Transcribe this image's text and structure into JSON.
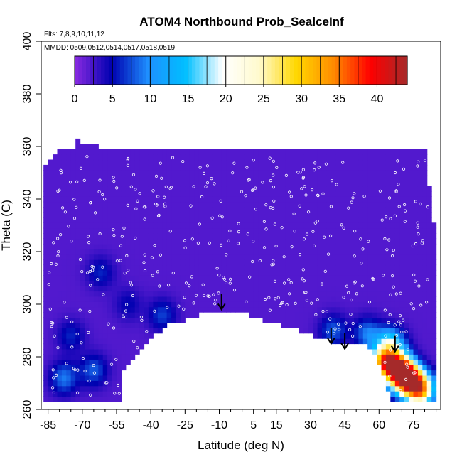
{
  "chart_data": {
    "type": "heatmap",
    "title": "ATOM4 Northbound Prob_SealceInf",
    "subtitle_flights": "Flts: 7,8,9,10,11,12",
    "subtitle_dates": "MMDD: 0509,0512,0514,0517,0518,0519",
    "xlabel": "Latitude (deg N)",
    "ylabel": "Theta (C)",
    "xlim": [
      -88,
      87
    ],
    "ylim": [
      260,
      400
    ],
    "xticks": [
      "-85",
      "-70",
      "-55",
      "-40",
      "-25",
      "-10",
      "5",
      "15",
      "30",
      "45",
      "60",
      "75"
    ],
    "xtick_values": [
      -85,
      -70,
      -55,
      -40,
      -25,
      -10,
      5,
      15,
      30,
      45,
      60,
      75
    ],
    "yticks": [
      "260",
      "280",
      "300",
      "320",
      "340",
      "360",
      "380",
      "400"
    ],
    "ytick_values": [
      260,
      280,
      300,
      320,
      340,
      360,
      380,
      400
    ],
    "colorbar": {
      "ticks": [
        "0",
        "5",
        "10",
        "15",
        "20",
        "25",
        "30",
        "35",
        "40"
      ],
      "tick_values": [
        0,
        5,
        10,
        15,
        20,
        25,
        30,
        35,
        40
      ],
      "range": [
        0,
        44
      ],
      "colors": [
        "#8a2be2",
        "#0000b0",
        "#1e90ff",
        "#00bfff",
        "#ffffff",
        "#fffacd",
        "#ffd700",
        "#ff8c00",
        "#ff0000",
        "#a52a2a"
      ]
    },
    "field": {
      "background_value": 2,
      "domain_top": [
        [
          -85,
          352
        ],
        [
          -80,
          358
        ],
        [
          -74,
          358
        ],
        [
          -72,
          361
        ],
        [
          -60,
          358
        ],
        [
          80,
          358
        ],
        [
          84,
          330
        ],
        [
          85,
          264
        ]
      ],
      "domain_bottom": [
        [
          -85,
          264
        ],
        [
          -53,
          264
        ],
        [
          -53,
          275
        ],
        [
          -40,
          288
        ],
        [
          -30,
          295
        ],
        [
          -25,
          295
        ],
        [
          -20,
          297
        ],
        [
          -10,
          298.5
        ],
        [
          0,
          298
        ],
        [
          10,
          295
        ],
        [
          25,
          291
        ],
        [
          45,
          285
        ],
        [
          55,
          286
        ],
        [
          62,
          275
        ],
        [
          65,
          265
        ],
        [
          84,
          264
        ]
      ],
      "features": [
        {
          "lat": -75,
          "theta": 288,
          "value": 6
        },
        {
          "lat": -65,
          "theta": 275,
          "value": 8
        },
        {
          "lat": -78,
          "theta": 272,
          "value": 9
        },
        {
          "lat": -62,
          "theta": 312,
          "value": 6
        },
        {
          "lat": -50,
          "theta": 300,
          "value": 5
        },
        {
          "lat": -35,
          "theta": 296,
          "value": 7
        },
        {
          "lat": 40,
          "theta": 290,
          "value": 8
        },
        {
          "lat": 55,
          "theta": 289,
          "value": 9
        },
        {
          "lat": 65,
          "theta": 285,
          "value": 16
        },
        {
          "lat": 68,
          "theta": 276,
          "value": 32
        },
        {
          "lat": 72,
          "theta": 272,
          "value": 40
        },
        {
          "lat": 62,
          "theta": 278,
          "value": 28
        },
        {
          "lat": 78,
          "theta": 268,
          "value": 34
        }
      ]
    },
    "arrows": [
      {
        "lat": -9,
        "theta": 298
      },
      {
        "lat": 39,
        "theta": 285
      },
      {
        "lat": 45,
        "theta": 283
      },
      {
        "lat": 67,
        "theta": 282
      }
    ],
    "sample_points": {
      "count": 420,
      "lat_range": [
        -85,
        82
      ],
      "theta_range": [
        262,
        358
      ]
    },
    "grid": false,
    "legend": "none"
  }
}
